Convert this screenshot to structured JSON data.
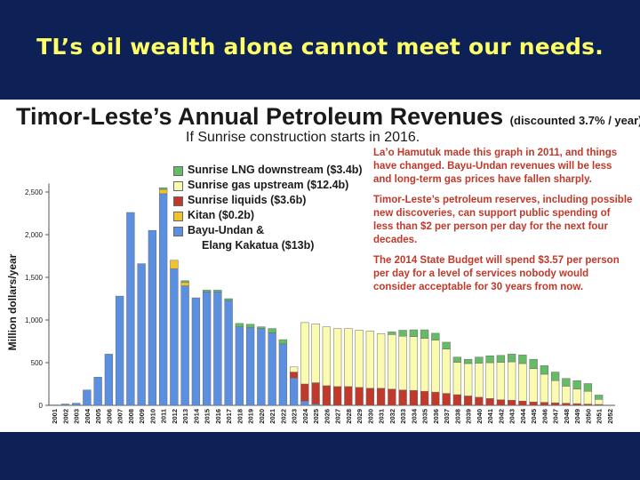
{
  "slide_title": "TL’s oil wealth alone cannot meet our needs.",
  "chart_data": {
    "type": "bar",
    "stacked": true,
    "title": "Timor-Leste’s Annual Petroleum Revenues",
    "title_note": "(discounted 3.7% / year)",
    "subtitle": "If Sunrise construction starts in 2016.",
    "ylabel": "Million dollars/year",
    "xlabel": "",
    "ylim": [
      0,
      2600
    ],
    "yticks": [
      0,
      500,
      1000,
      1500,
      2000,
      2500
    ],
    "ytick_labels": [
      "0",
      "500",
      "1,000",
      "1,500",
      "2,000",
      "2,500"
    ],
    "grid": false,
    "legend_position": "top-center",
    "categories": [
      "2001",
      "2002",
      "2003",
      "2004",
      "2005",
      "2006",
      "2007",
      "2008",
      "2009",
      "2010",
      "2011",
      "2012",
      "2013",
      "2014",
      "2015",
      "2016",
      "2017",
      "2018",
      "2019",
      "2020",
      "2021",
      "2022",
      "2023",
      "2024",
      "2025",
      "2026",
      "2027",
      "2028",
      "2029",
      "2030",
      "2031",
      "2032",
      "2033",
      "2034",
      "2035",
      "2036",
      "2037",
      "2038",
      "2039",
      "2040",
      "2041",
      "2042",
      "2043",
      "2044",
      "2045",
      "2046",
      "2047",
      "2048",
      "2049",
      "2050",
      "2051",
      "2052"
    ],
    "series": [
      {
        "name": "Bayu-Undan & Elang Kakatua ($13b)",
        "color": "#5b8fe0",
        "values": [
          5,
          15,
          25,
          180,
          330,
          600,
          1280,
          2260,
          1660,
          2050,
          2480,
          1600,
          1400,
          1260,
          1330,
          1330,
          1230,
          920,
          910,
          900,
          850,
          720,
          320,
          50,
          15,
          0,
          0,
          0,
          0,
          0,
          0,
          0,
          0,
          0,
          0,
          0,
          0,
          0,
          0,
          0,
          0,
          0,
          0,
          0,
          0,
          0,
          0,
          0,
          0,
          0,
          0,
          0
        ]
      },
      {
        "name": "Kitan ($0.2b)",
        "color": "#f2c12e",
        "values": [
          0,
          0,
          0,
          0,
          0,
          0,
          0,
          0,
          0,
          0,
          50,
          100,
          40,
          0,
          0,
          0,
          0,
          0,
          0,
          0,
          0,
          0,
          0,
          0,
          0,
          0,
          0,
          0,
          0,
          0,
          0,
          0,
          0,
          0,
          0,
          0,
          0,
          0,
          0,
          0,
          0,
          0,
          0,
          0,
          0,
          0,
          0,
          0,
          0,
          0,
          0,
          0
        ]
      },
      {
        "name": "Sunrise liquids ($3.6b)",
        "color": "#c0392b",
        "values": [
          0,
          0,
          0,
          0,
          0,
          0,
          0,
          0,
          0,
          0,
          0,
          0,
          0,
          0,
          0,
          0,
          0,
          0,
          0,
          0,
          0,
          0,
          70,
          200,
          250,
          230,
          220,
          220,
          210,
          200,
          200,
          190,
          180,
          175,
          165,
          155,
          140,
          125,
          110,
          95,
          80,
          65,
          60,
          50,
          40,
          35,
          30,
          25,
          20,
          15,
          10,
          0
        ]
      },
      {
        "name": "Sunrise gas upstream ($12.4b)",
        "color": "#fbfbb0",
        "values": [
          0,
          0,
          0,
          0,
          0,
          0,
          0,
          0,
          0,
          0,
          0,
          0,
          0,
          0,
          0,
          0,
          0,
          0,
          0,
          0,
          0,
          0,
          60,
          720,
          690,
          690,
          680,
          680,
          670,
          670,
          640,
          640,
          630,
          630,
          620,
          610,
          520,
          380,
          380,
          400,
          420,
          440,
          450,
          440,
          390,
          330,
          260,
          200,
          170,
          150,
          60,
          0
        ]
      },
      {
        "name": "Sunrise LNG downstream ($3.4b)",
        "color": "#66bb66",
        "values": [
          0,
          0,
          0,
          0,
          0,
          0,
          0,
          0,
          0,
          0,
          20,
          0,
          20,
          0,
          20,
          20,
          20,
          40,
          40,
          20,
          50,
          50,
          0,
          0,
          0,
          0,
          0,
          0,
          0,
          0,
          0,
          30,
          70,
          80,
          100,
          80,
          80,
          60,
          50,
          70,
          80,
          80,
          90,
          100,
          110,
          100,
          100,
          90,
          100,
          90,
          50,
          0
        ]
      }
    ]
  },
  "legend_items": [
    {
      "label": "Sunrise LNG downstream ($3.4b)",
      "color": "#66bb66"
    },
    {
      "label": "Sunrise gas upstream ($12.4b)",
      "color": "#fbfbb0"
    },
    {
      "label": "Sunrise liquids ($3.6b)",
      "color": "#c0392b"
    },
    {
      "label": "Kitan ($0.2b)",
      "color": "#f2c12e"
    },
    {
      "label": "Bayu-Undan &",
      "color": "#5b8fe0"
    }
  ],
  "legend_cont": "Elang Kakatua ($13b)",
  "notes": [
    "La’o Hamutuk made this graph in 2011, and things have changed. Bayu-Undan revenues will be less and long-term gas prices have fallen sharply.",
    "Timor-Leste’s petroleum reserves, including possible new discoveries, can support public spending of less than $2 per person per day for the next four decades.",
    "The 2014 State Budget will spend $3.57 per person per day for a level of services nobody would consider acceptable for 30 years from now."
  ],
  "colors": {
    "background": "#0d2157",
    "slide_title": "#ffff66",
    "notes_text": "#c0392b"
  }
}
